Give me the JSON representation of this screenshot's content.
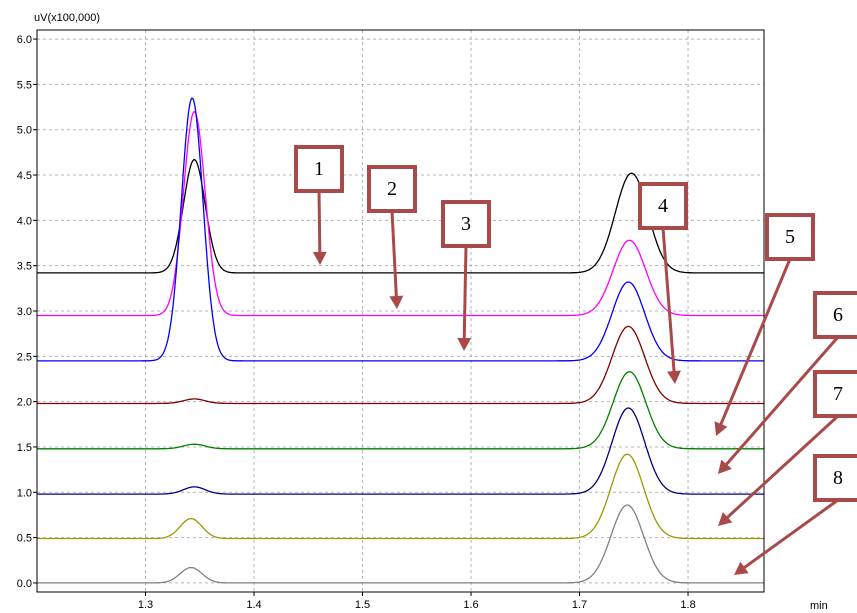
{
  "chart_data": {
    "type": "line",
    "ylabel": "uV(x100,000)",
    "xlabel": "min",
    "xlim": [
      1.2,
      1.87
    ],
    "ylim": [
      -0.1,
      6.1
    ],
    "x_ticks": [
      1.3,
      1.4,
      1.5,
      1.6,
      1.7,
      1.8
    ],
    "x_tick_labels": [
      "1.3",
      "1.4",
      "1.5",
      "1.6",
      "1.7",
      "1.8"
    ],
    "y_ticks": [
      0.0,
      0.5,
      1.0,
      1.5,
      2.0,
      2.5,
      3.0,
      3.5,
      4.0,
      4.5,
      5.0,
      5.5,
      6.0
    ],
    "y_tick_labels": [
      "0.0",
      "0.5",
      "1.0",
      "1.5",
      "2.0",
      "2.5",
      "3.0",
      "3.5",
      "4.0",
      "4.5",
      "5.0",
      "5.5",
      "6.0"
    ],
    "grid": true,
    "series": [
      {
        "color": "#000000",
        "baseline": 3.42,
        "peaks": [
          {
            "x": 1.345,
            "height": 1.25,
            "width": 0.01
          },
          {
            "x": 1.748,
            "height": 1.1,
            "width": 0.015
          }
        ]
      },
      {
        "color": "#ff00ff",
        "baseline": 2.95,
        "peaks": [
          {
            "x": 1.345,
            "height": 2.25,
            "width": 0.01
          },
          {
            "x": 1.746,
            "height": 0.83,
            "width": 0.015
          }
        ]
      },
      {
        "color": "#0000ff",
        "baseline": 2.45,
        "peaks": [
          {
            "x": 1.343,
            "height": 2.9,
            "width": 0.01
          },
          {
            "x": 1.745,
            "height": 0.87,
            "width": 0.015
          }
        ]
      },
      {
        "color": "#800000",
        "baseline": 1.98,
        "peaks": [
          {
            "x": 1.345,
            "height": 0.05,
            "width": 0.01
          },
          {
            "x": 1.745,
            "height": 0.85,
            "width": 0.015
          }
        ]
      },
      {
        "color": "#008000",
        "baseline": 1.48,
        "peaks": [
          {
            "x": 1.345,
            "height": 0.05,
            "width": 0.01
          },
          {
            "x": 1.746,
            "height": 0.85,
            "width": 0.015
          }
        ]
      },
      {
        "color": "#000080",
        "baseline": 0.98,
        "peaks": [
          {
            "x": 1.345,
            "height": 0.08,
            "width": 0.01
          },
          {
            "x": 1.745,
            "height": 0.95,
            "width": 0.015
          }
        ]
      },
      {
        "color": "#999900",
        "baseline": 0.49,
        "peaks": [
          {
            "x": 1.342,
            "height": 0.22,
            "width": 0.01
          },
          {
            "x": 1.744,
            "height": 0.93,
            "width": 0.015
          }
        ]
      },
      {
        "color": "#808080",
        "baseline": 0.0,
        "peaks": [
          {
            "x": 1.342,
            "height": 0.17,
            "width": 0.01
          },
          {
            "x": 1.744,
            "height": 0.86,
            "width": 0.015
          }
        ]
      }
    ],
    "annotations": [
      {
        "label": "1"
      },
      {
        "label": "2"
      },
      {
        "label": "3"
      },
      {
        "label": "4"
      },
      {
        "label": "5"
      },
      {
        "label": "6"
      },
      {
        "label": "7"
      },
      {
        "label": "8"
      }
    ],
    "callout_color": "#a84a4a"
  }
}
